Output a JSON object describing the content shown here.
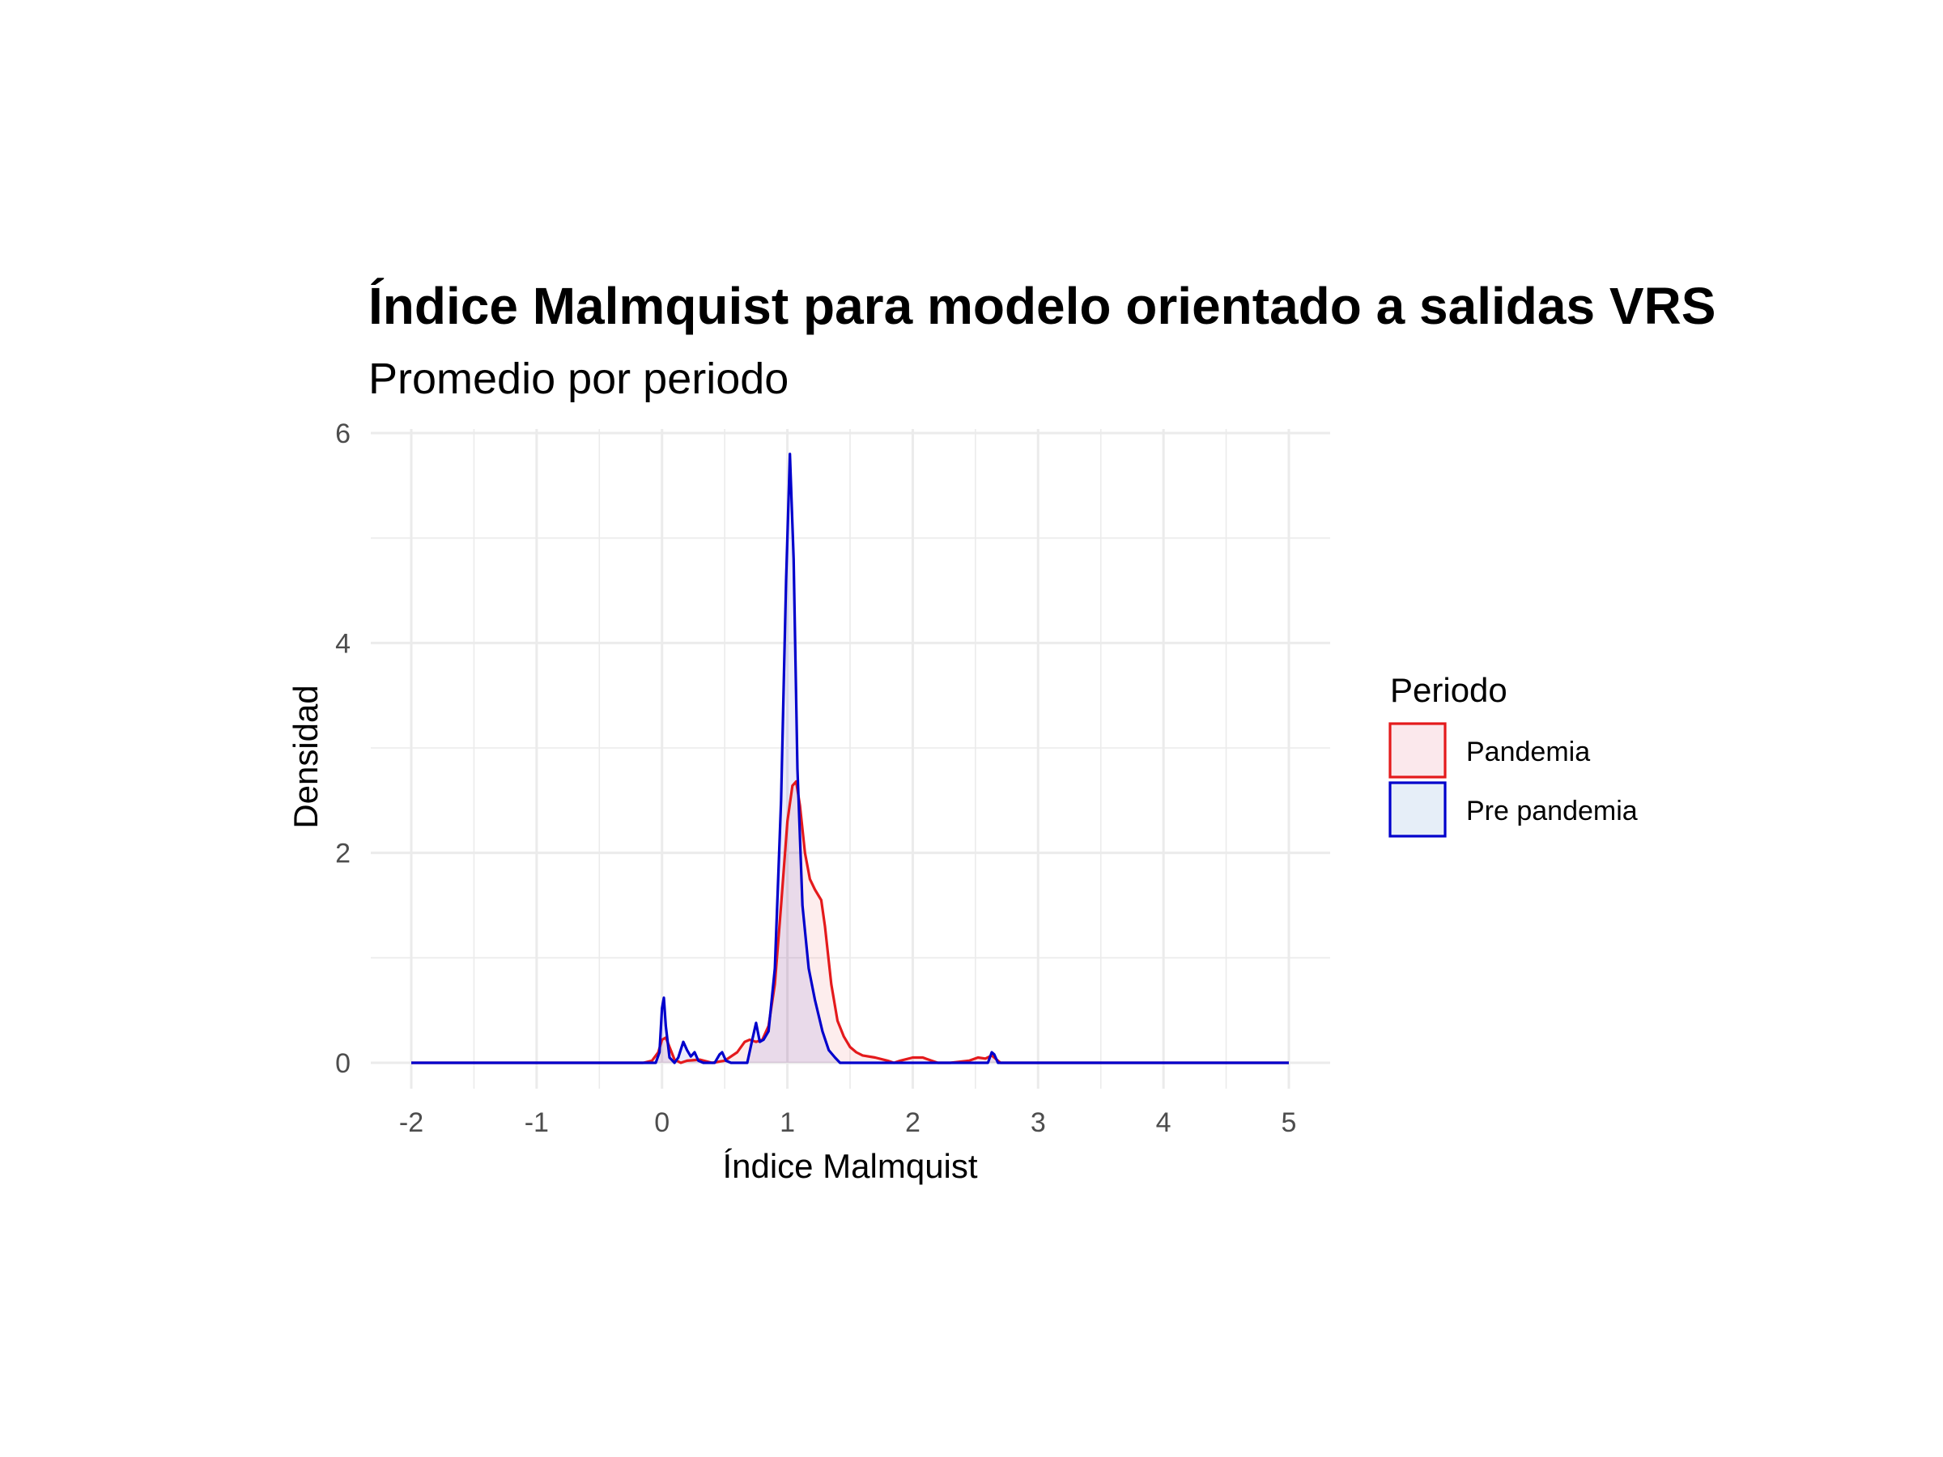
{
  "chart_data": {
    "type": "area",
    "title": "Índice Malmquist para modelo orientado a salidas VRS",
    "subtitle": "Promedio por periodo",
    "xlabel": "Índice Malmquist",
    "ylabel": "Densidad",
    "xlim": [
      -2,
      5
    ],
    "ylim": [
      0,
      6
    ],
    "x_ticks": [
      "-2",
      "-1",
      "0",
      "1",
      "2",
      "3",
      "4",
      "5"
    ],
    "y_ticks": [
      "0",
      "2",
      "4",
      "6"
    ],
    "grid": true,
    "legend": {
      "title": "Periodo",
      "placement": "right"
    },
    "series": [
      {
        "name": "Pandemia",
        "color": "#e41a1c",
        "fill": "#fbe8ec",
        "points": [
          [
            -2.0,
            0
          ],
          [
            -0.15,
            0
          ],
          [
            -0.08,
            0.02
          ],
          [
            -0.03,
            0.1
          ],
          [
            0.0,
            0.22
          ],
          [
            0.03,
            0.24
          ],
          [
            0.06,
            0.15
          ],
          [
            0.1,
            0.03
          ],
          [
            0.15,
            0.0
          ],
          [
            0.2,
            0.02
          ],
          [
            0.3,
            0.03
          ],
          [
            0.4,
            0.0
          ],
          [
            0.5,
            0.02
          ],
          [
            0.6,
            0.1
          ],
          [
            0.66,
            0.2
          ],
          [
            0.7,
            0.22
          ],
          [
            0.75,
            0.2
          ],
          [
            0.8,
            0.22
          ],
          [
            0.85,
            0.35
          ],
          [
            0.9,
            0.75
          ],
          [
            0.95,
            1.5
          ],
          [
            1.0,
            2.3
          ],
          [
            1.04,
            2.64
          ],
          [
            1.07,
            2.68
          ],
          [
            1.1,
            2.45
          ],
          [
            1.14,
            2.0
          ],
          [
            1.18,
            1.75
          ],
          [
            1.22,
            1.65
          ],
          [
            1.27,
            1.55
          ],
          [
            1.3,
            1.3
          ],
          [
            1.35,
            0.75
          ],
          [
            1.4,
            0.4
          ],
          [
            1.45,
            0.25
          ],
          [
            1.5,
            0.15
          ],
          [
            1.55,
            0.1
          ],
          [
            1.6,
            0.07
          ],
          [
            1.7,
            0.05
          ],
          [
            1.8,
            0.02
          ],
          [
            1.85,
            0.0
          ],
          [
            1.9,
            0.02
          ],
          [
            2.0,
            0.05
          ],
          [
            2.08,
            0.05
          ],
          [
            2.15,
            0.02
          ],
          [
            2.2,
            0.0
          ],
          [
            2.3,
            0.0
          ],
          [
            2.45,
            0.02
          ],
          [
            2.52,
            0.05
          ],
          [
            2.58,
            0.04
          ],
          [
            2.63,
            0.07
          ],
          [
            2.66,
            0.04
          ],
          [
            2.7,
            0.0
          ],
          [
            5.0,
            0
          ]
        ]
      },
      {
        "name": "Pre pandemia",
        "color": "#0000cc",
        "fill": "#e6eef8",
        "points": [
          [
            -2.0,
            0
          ],
          [
            -0.05,
            0
          ],
          [
            -0.02,
            0.1
          ],
          [
            0.0,
            0.52
          ],
          [
            0.015,
            0.62
          ],
          [
            0.03,
            0.35
          ],
          [
            0.06,
            0.05
          ],
          [
            0.1,
            0.0
          ],
          [
            0.13,
            0.05
          ],
          [
            0.17,
            0.2
          ],
          [
            0.2,
            0.12
          ],
          [
            0.23,
            0.06
          ],
          [
            0.26,
            0.1
          ],
          [
            0.29,
            0.02
          ],
          [
            0.33,
            0.0
          ],
          [
            0.42,
            0.0
          ],
          [
            0.46,
            0.08
          ],
          [
            0.48,
            0.1
          ],
          [
            0.51,
            0.02
          ],
          [
            0.55,
            0.0
          ],
          [
            0.68,
            0.0
          ],
          [
            0.72,
            0.22
          ],
          [
            0.75,
            0.38
          ],
          [
            0.78,
            0.2
          ],
          [
            0.81,
            0.22
          ],
          [
            0.85,
            0.3
          ],
          [
            0.9,
            0.9
          ],
          [
            0.95,
            2.5
          ],
          [
            0.99,
            4.6
          ],
          [
            1.02,
            5.8
          ],
          [
            1.05,
            4.8
          ],
          [
            1.08,
            2.8
          ],
          [
            1.12,
            1.5
          ],
          [
            1.17,
            0.9
          ],
          [
            1.22,
            0.6
          ],
          [
            1.28,
            0.3
          ],
          [
            1.33,
            0.12
          ],
          [
            1.38,
            0.05
          ],
          [
            1.42,
            0.0
          ],
          [
            2.6,
            0.0
          ],
          [
            2.63,
            0.1
          ],
          [
            2.65,
            0.08
          ],
          [
            2.68,
            0.0
          ],
          [
            5.0,
            0
          ]
        ]
      }
    ]
  }
}
